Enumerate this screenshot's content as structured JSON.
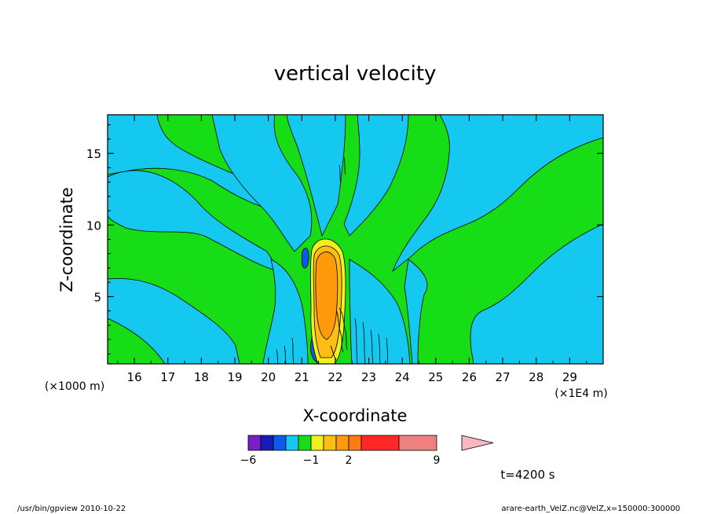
{
  "chart_data": {
    "type": "contour",
    "title": "vertical velocity",
    "xlabel": "X-coordinate",
    "ylabel": "Z-coordinate",
    "x_unit": "(×1E4 m)",
    "y_unit": "(×1000 m)",
    "xlim": [
      15.2,
      30.0
    ],
    "ylim": [
      0.3,
      17.7
    ],
    "x_ticks": [
      16,
      17,
      18,
      19,
      20,
      21,
      22,
      23,
      24,
      25,
      26,
      27,
      28,
      29
    ],
    "y_ticks": [
      5,
      10,
      15
    ],
    "time_label": "t=4200 s",
    "colorbar": {
      "levels": [
        -6,
        -5,
        -4,
        -3,
        -2,
        -1,
        0,
        1,
        2,
        3,
        6,
        9,
        10,
        11
      ],
      "labels": [
        {
          "value": -6,
          "text": "−6"
        },
        {
          "value": -1,
          "text": "−1"
        },
        {
          "value": 2,
          "text": "2"
        },
        {
          "value": 9,
          "text": "9"
        }
      ],
      "colors": [
        "#7a1fc8",
        "#1a1ab8",
        "#0a5af0",
        "#14c8f0",
        "#16dd16",
        "#f0f01a",
        "#ffbe14",
        "#ff9a0a",
        "#ff7a14",
        "#ff2828",
        "#f08080"
      ],
      "extend_color": "#f8b8c0"
    }
  },
  "footer": {
    "left": "/usr/bin/gpview   2010-10-22",
    "right": "arare-earth_VelZ.nc@VelZ,x=150000:300000"
  }
}
